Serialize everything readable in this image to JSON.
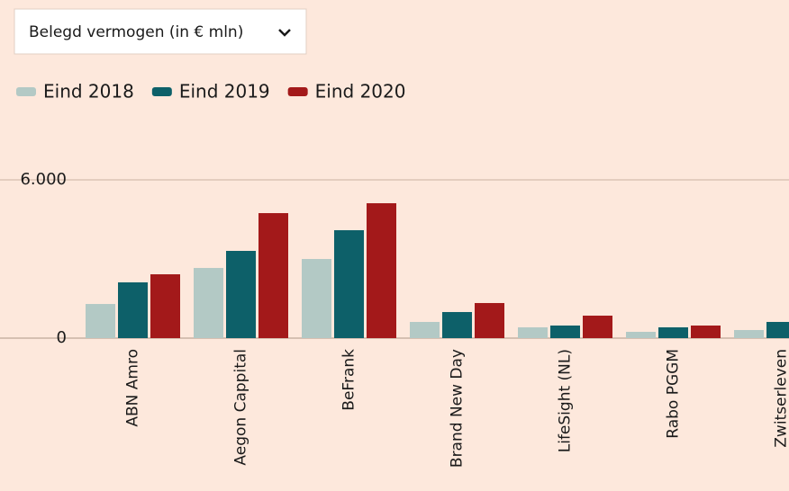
{
  "chart_data": {
    "type": "bar",
    "dropdown": "Belegd vermogen (in € mln)",
    "categories": [
      "ABN Amro",
      "Aegon Cappital",
      "BeFrank",
      "Brand New Day",
      "LifeSight (NL)",
      "Rabo PGGM",
      "Zwitserleven"
    ],
    "series": [
      {
        "name": "Eind 2018",
        "color": "#b3c9c5",
        "values": [
          1295,
          2660,
          3000,
          614,
          409,
          239,
          307
        ]
      },
      {
        "name": "Eind 2019",
        "color": "#0d6069",
        "values": [
          2114,
          3307,
          4091,
          989,
          477,
          409,
          614
        ]
      },
      {
        "name": "Eind 2020",
        "color": "#a3191a",
        "values": [
          2420,
          4739,
          5114,
          1330,
          852,
          477,
          null
        ]
      }
    ],
    "ylim": [
      0,
      6000
    ],
    "yticks": [
      0,
      {
        "value": 6000,
        "label": "6.000"
      }
    ],
    "grid": true
  }
}
